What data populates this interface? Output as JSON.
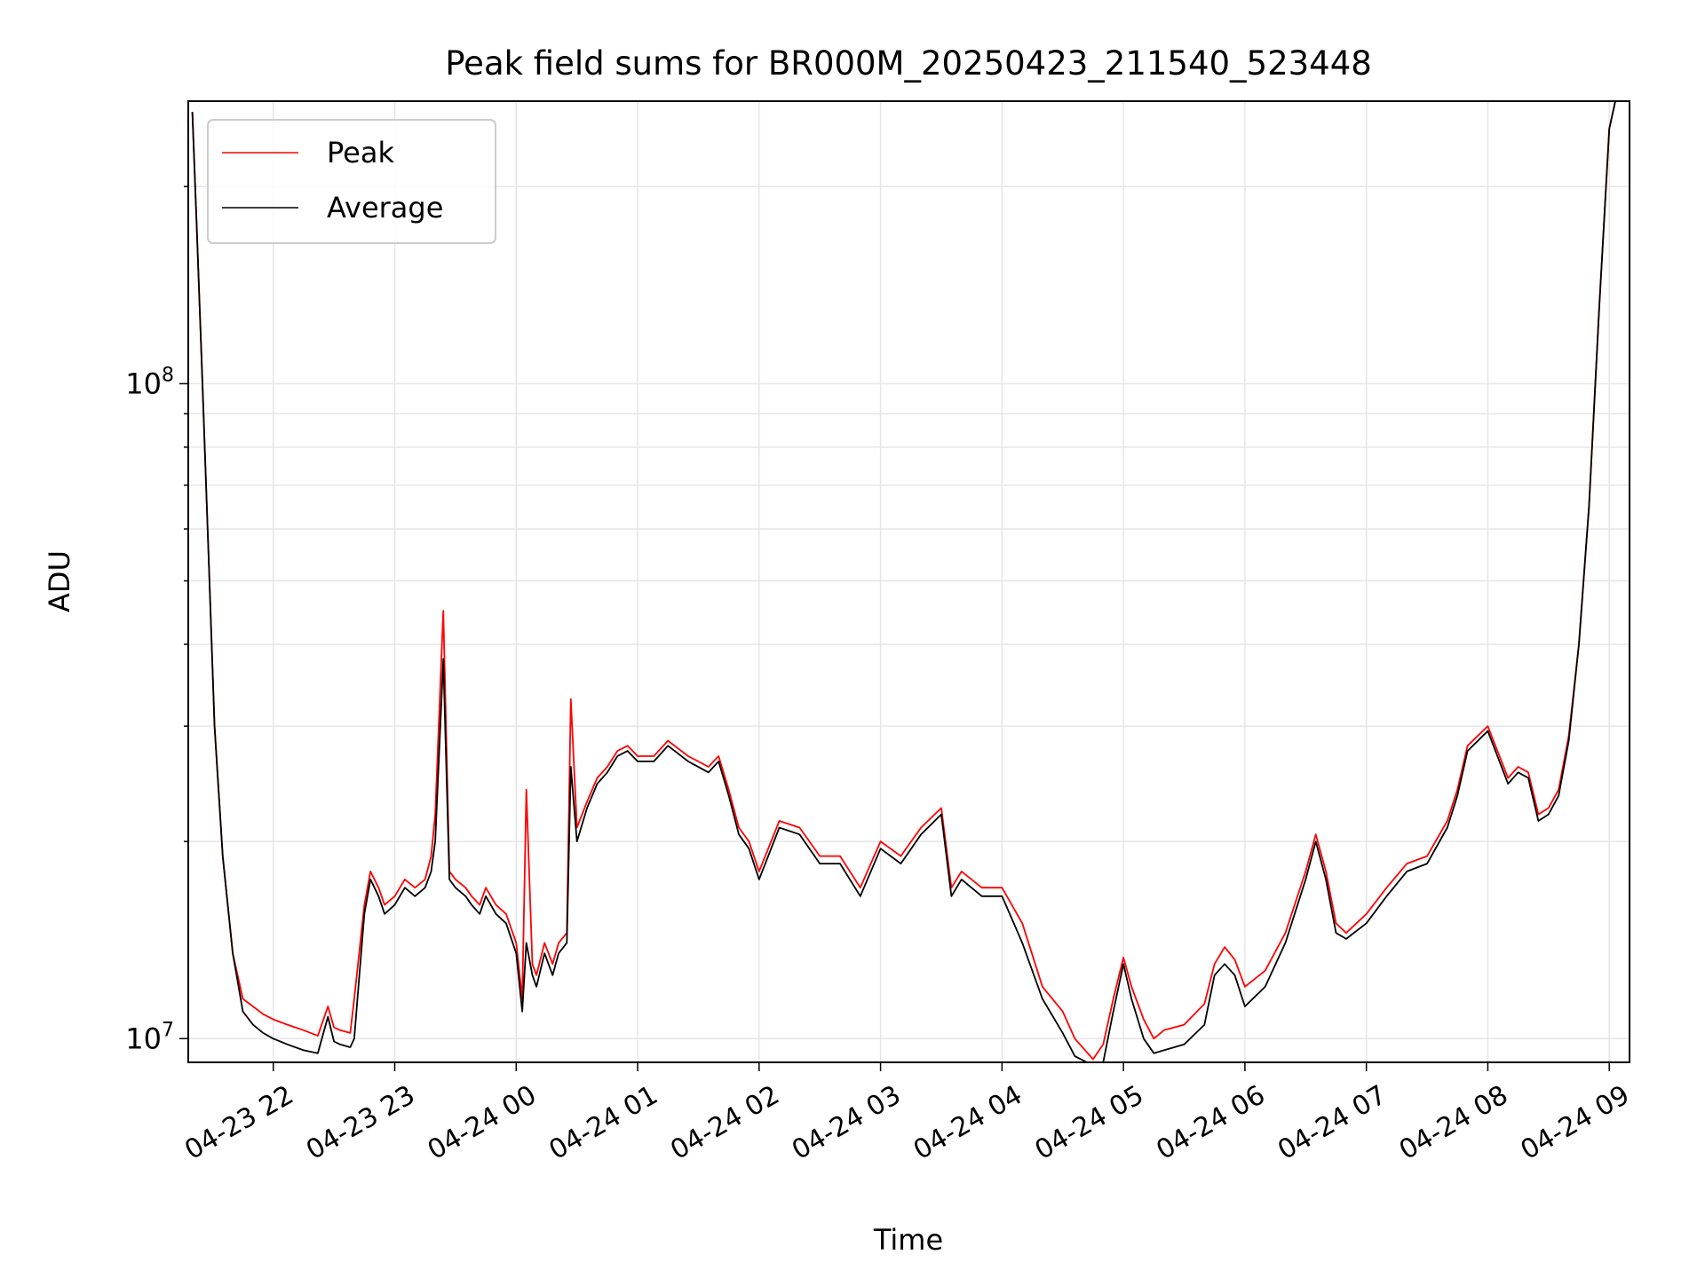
{
  "chart_data": {
    "type": "line",
    "title": "Peak field sums for BR000M_20250423_211540_523448",
    "xlabel": "Time",
    "ylabel": "ADU",
    "y_scale": "log",
    "ylim": [
      9200000,
      270000000
    ],
    "xlim": [
      "2025-04-23 21:18",
      "2025-04-24 09:10"
    ],
    "x_ticks": [
      {
        "value": "2025-04-23 22:00",
        "label": "04-23 22"
      },
      {
        "value": "2025-04-23 23:00",
        "label": "04-23 23"
      },
      {
        "value": "2025-04-24 00:00",
        "label": "04-24 00"
      },
      {
        "value": "2025-04-24 01:00",
        "label": "04-24 01"
      },
      {
        "value": "2025-04-24 02:00",
        "label": "04-24 02"
      },
      {
        "value": "2025-04-24 03:00",
        "label": "04-24 03"
      },
      {
        "value": "2025-04-24 04:00",
        "label": "04-24 04"
      },
      {
        "value": "2025-04-24 05:00",
        "label": "04-24 05"
      },
      {
        "value": "2025-04-24 06:00",
        "label": "04-24 06"
      },
      {
        "value": "2025-04-24 07:00",
        "label": "04-24 07"
      },
      {
        "value": "2025-04-24 08:00",
        "label": "04-24 08"
      },
      {
        "value": "2025-04-24 09:00",
        "label": "04-24 09"
      }
    ],
    "y_ticks": [
      {
        "value": 10000000,
        "base": "10",
        "exp": "7"
      },
      {
        "value": 100000000,
        "base": "10",
        "exp": "8"
      }
    ],
    "grid": true,
    "legend_position": "top-left",
    "series": [
      {
        "name": "Peak",
        "color": "#ff0000",
        "x": [
          "2025-04-23 21:20",
          "2025-04-23 21:22",
          "2025-04-23 21:25",
          "2025-04-23 21:28",
          "2025-04-23 21:31",
          "2025-04-23 21:35",
          "2025-04-23 21:40",
          "2025-04-23 21:45",
          "2025-04-23 21:50",
          "2025-04-23 21:55",
          "2025-04-23 22:00",
          "2025-04-23 22:07",
          "2025-04-23 22:15",
          "2025-04-23 22:22",
          "2025-04-23 22:27",
          "2025-04-23 22:30",
          "2025-04-23 22:33",
          "2025-04-23 22:38",
          "2025-04-23 22:40",
          "2025-04-23 22:45",
          "2025-04-23 22:48",
          "2025-04-23 22:52",
          "2025-04-23 22:55",
          "2025-04-23 23:00",
          "2025-04-23 23:05",
          "2025-04-23 23:10",
          "2025-04-23 23:15",
          "2025-04-23 23:18",
          "2025-04-23 23:20",
          "2025-04-23 23:24",
          "2025-04-23 23:27",
          "2025-04-23 23:30",
          "2025-04-23 23:35",
          "2025-04-23 23:38",
          "2025-04-23 23:42",
          "2025-04-23 23:45",
          "2025-04-23 23:50",
          "2025-04-23 23:55",
          "2025-04-24 00:00",
          "2025-04-24 00:03",
          "2025-04-24 00:05",
          "2025-04-24 00:08",
          "2025-04-24 00:10",
          "2025-04-24 00:14",
          "2025-04-24 00:18",
          "2025-04-24 00:21",
          "2025-04-24 00:25",
          "2025-04-24 00:27",
          "2025-04-24 00:30",
          "2025-04-24 00:35",
          "2025-04-24 00:40",
          "2025-04-24 00:45",
          "2025-04-24 00:50",
          "2025-04-24 00:55",
          "2025-04-24 01:00",
          "2025-04-24 01:08",
          "2025-04-24 01:15",
          "2025-04-24 01:25",
          "2025-04-24 01:35",
          "2025-04-24 01:40",
          "2025-04-24 01:45",
          "2025-04-24 01:50",
          "2025-04-24 01:55",
          "2025-04-24 02:00",
          "2025-04-24 02:10",
          "2025-04-24 02:20",
          "2025-04-24 02:30",
          "2025-04-24 02:40",
          "2025-04-24 02:50",
          "2025-04-24 03:00",
          "2025-04-24 03:10",
          "2025-04-24 03:20",
          "2025-04-24 03:30",
          "2025-04-24 03:35",
          "2025-04-24 03:40",
          "2025-04-24 03:50",
          "2025-04-24 04:00",
          "2025-04-24 04:10",
          "2025-04-24 04:20",
          "2025-04-24 04:30",
          "2025-04-24 04:36",
          "2025-04-24 04:45",
          "2025-04-24 04:50",
          "2025-04-24 04:55",
          "2025-04-24 05:00",
          "2025-04-24 05:04",
          "2025-04-24 05:10",
          "2025-04-24 05:15",
          "2025-04-24 05:20",
          "2025-04-24 05:30",
          "2025-04-24 05:40",
          "2025-04-24 05:45",
          "2025-04-24 05:50",
          "2025-04-24 05:55",
          "2025-04-24 06:00",
          "2025-04-24 06:10",
          "2025-04-24 06:20",
          "2025-04-24 06:30",
          "2025-04-24 06:35",
          "2025-04-24 06:40",
          "2025-04-24 06:45",
          "2025-04-24 06:50",
          "2025-04-24 07:00",
          "2025-04-24 07:10",
          "2025-04-24 07:20",
          "2025-04-24 07:30",
          "2025-04-24 07:40",
          "2025-04-24 07:45",
          "2025-04-24 07:50",
          "2025-04-24 08:00",
          "2025-04-24 08:10",
          "2025-04-24 08:15",
          "2025-04-24 08:20",
          "2025-04-24 08:25",
          "2025-04-24 08:30",
          "2025-04-24 08:35",
          "2025-04-24 08:40",
          "2025-04-24 08:45",
          "2025-04-24 08:50",
          "2025-04-24 08:55",
          "2025-04-24 09:00",
          "2025-04-24 09:03"
        ],
        "y": [
          260000000,
          180000000,
          100000000,
          55000000,
          30000000,
          19000000,
          13500000,
          11500000,
          11200000,
          10900000,
          10700000,
          10500000,
          10300000,
          10100000,
          11200000,
          10400000,
          10300000,
          10200000,
          11500000,
          16000000,
          18000000,
          17000000,
          16000000,
          16500000,
          17500000,
          17000000,
          17500000,
          19000000,
          22000000,
          45000000,
          18000000,
          17500000,
          17000000,
          16500000,
          16000000,
          17000000,
          16000000,
          15500000,
          14000000,
          11500000,
          24000000,
          13000000,
          12500000,
          14000000,
          13000000,
          14000000,
          14500000,
          33000000,
          21000000,
          23000000,
          25000000,
          26000000,
          27500000,
          28000000,
          27000000,
          27000000,
          28500000,
          27000000,
          26000000,
          27000000,
          24000000,
          21000000,
          20000000,
          18000000,
          21500000,
          21000000,
          19000000,
          19000000,
          17000000,
          20000000,
          19000000,
          21000000,
          22500000,
          17000000,
          18000000,
          17000000,
          17000000,
          15000000,
          12000000,
          11000000,
          10000000,
          9300000,
          9800000,
          11500000,
          13300000,
          12000000,
          10700000,
          10000000,
          10300000,
          10500000,
          11300000,
          13000000,
          13800000,
          13200000,
          12000000,
          12700000,
          14500000,
          18000000,
          20500000,
          18000000,
          15000000,
          14500000,
          15500000,
          17000000,
          18500000,
          19000000,
          21500000,
          24000000,
          28000000,
          30000000,
          25000000,
          26000000,
          25500000,
          22000000,
          22500000,
          24000000,
          29000000,
          40000000,
          65000000,
          130000000,
          245000000,
          270000000
        ]
      },
      {
        "name": "Average",
        "color": "#000000",
        "x": [
          "2025-04-23 21:20",
          "2025-04-23 21:22",
          "2025-04-23 21:25",
          "2025-04-23 21:28",
          "2025-04-23 21:31",
          "2025-04-23 21:35",
          "2025-04-23 21:40",
          "2025-04-23 21:45",
          "2025-04-23 21:50",
          "2025-04-23 21:55",
          "2025-04-23 22:00",
          "2025-04-23 22:07",
          "2025-04-23 22:15",
          "2025-04-23 22:22",
          "2025-04-23 22:27",
          "2025-04-23 22:30",
          "2025-04-23 22:33",
          "2025-04-23 22:38",
          "2025-04-23 22:40",
          "2025-04-23 22:45",
          "2025-04-23 22:48",
          "2025-04-23 22:52",
          "2025-04-23 22:55",
          "2025-04-23 23:00",
          "2025-04-23 23:05",
          "2025-04-23 23:10",
          "2025-04-23 23:15",
          "2025-04-23 23:18",
          "2025-04-23 23:20",
          "2025-04-23 23:24",
          "2025-04-23 23:27",
          "2025-04-23 23:30",
          "2025-04-23 23:35",
          "2025-04-23 23:38",
          "2025-04-23 23:42",
          "2025-04-23 23:45",
          "2025-04-23 23:50",
          "2025-04-23 23:55",
          "2025-04-24 00:00",
          "2025-04-24 00:03",
          "2025-04-24 00:05",
          "2025-04-24 00:08",
          "2025-04-24 00:10",
          "2025-04-24 00:14",
          "2025-04-24 00:18",
          "2025-04-24 00:21",
          "2025-04-24 00:25",
          "2025-04-24 00:27",
          "2025-04-24 00:30",
          "2025-04-24 00:35",
          "2025-04-24 00:40",
          "2025-04-24 00:45",
          "2025-04-24 00:50",
          "2025-04-24 00:55",
          "2025-04-24 01:00",
          "2025-04-24 01:08",
          "2025-04-24 01:15",
          "2025-04-24 01:25",
          "2025-04-24 01:35",
          "2025-04-24 01:40",
          "2025-04-24 01:45",
          "2025-04-24 01:50",
          "2025-04-24 01:55",
          "2025-04-24 02:00",
          "2025-04-24 02:10",
          "2025-04-24 02:20",
          "2025-04-24 02:30",
          "2025-04-24 02:40",
          "2025-04-24 02:50",
          "2025-04-24 03:00",
          "2025-04-24 03:10",
          "2025-04-24 03:20",
          "2025-04-24 03:30",
          "2025-04-24 03:35",
          "2025-04-24 03:40",
          "2025-04-24 03:50",
          "2025-04-24 04:00",
          "2025-04-24 04:10",
          "2025-04-24 04:20",
          "2025-04-24 04:30",
          "2025-04-24 04:36",
          "2025-04-24 04:45",
          "2025-04-24 04:50",
          "2025-04-24 04:55",
          "2025-04-24 05:00",
          "2025-04-24 05:04",
          "2025-04-24 05:10",
          "2025-04-24 05:15",
          "2025-04-24 05:20",
          "2025-04-24 05:30",
          "2025-04-24 05:40",
          "2025-04-24 05:45",
          "2025-04-24 05:50",
          "2025-04-24 05:55",
          "2025-04-24 06:00",
          "2025-04-24 06:10",
          "2025-04-24 06:20",
          "2025-04-24 06:30",
          "2025-04-24 06:35",
          "2025-04-24 06:40",
          "2025-04-24 06:45",
          "2025-04-24 06:50",
          "2025-04-24 07:00",
          "2025-04-24 07:10",
          "2025-04-24 07:20",
          "2025-04-24 07:30",
          "2025-04-24 07:40",
          "2025-04-24 07:45",
          "2025-04-24 07:50",
          "2025-04-24 08:00",
          "2025-04-24 08:10",
          "2025-04-24 08:15",
          "2025-04-24 08:20",
          "2025-04-24 08:25",
          "2025-04-24 08:30",
          "2025-04-24 08:35",
          "2025-04-24 08:40",
          "2025-04-24 08:45",
          "2025-04-24 08:50",
          "2025-04-24 08:55",
          "2025-04-24 09:00",
          "2025-04-24 09:03"
        ],
        "y": [
          260000000,
          180000000,
          100000000,
          55000000,
          30000000,
          19000000,
          13500000,
          11000000,
          10500000,
          10200000,
          10000000,
          9800000,
          9600000,
          9500000,
          10800000,
          9900000,
          9800000,
          9700000,
          10000000,
          15500000,
          17500000,
          16500000,
          15500000,
          16000000,
          17000000,
          16500000,
          17000000,
          18000000,
          20000000,
          38000000,
          17500000,
          17000000,
          16500000,
          16000000,
          15500000,
          16500000,
          15500000,
          15000000,
          13500000,
          11000000,
          14000000,
          12500000,
          12000000,
          13500000,
          12500000,
          13500000,
          14000000,
          26000000,
          20000000,
          22500000,
          24500000,
          25500000,
          27000000,
          27500000,
          26500000,
          26500000,
          28000000,
          26500000,
          25500000,
          26500000,
          23500000,
          20500000,
          19500000,
          17500000,
          21000000,
          20500000,
          18500000,
          18500000,
          16500000,
          19500000,
          18500000,
          20500000,
          22000000,
          16500000,
          17500000,
          16500000,
          16500000,
          14000000,
          11500000,
          10200000,
          9400000,
          9100000,
          9200000,
          11000000,
          13000000,
          11500000,
          10000000,
          9500000,
          9600000,
          9800000,
          10500000,
          12500000,
          13000000,
          12500000,
          11200000,
          12000000,
          14000000,
          17500000,
          20000000,
          17500000,
          14500000,
          14200000,
          15000000,
          16500000,
          18000000,
          18500000,
          21000000,
          23500000,
          27500000,
          29500000,
          24500000,
          25500000,
          25000000,
          21500000,
          22000000,
          23500000,
          28500000,
          40000000,
          65000000,
          130000000,
          245000000,
          270000000
        ]
      }
    ]
  }
}
